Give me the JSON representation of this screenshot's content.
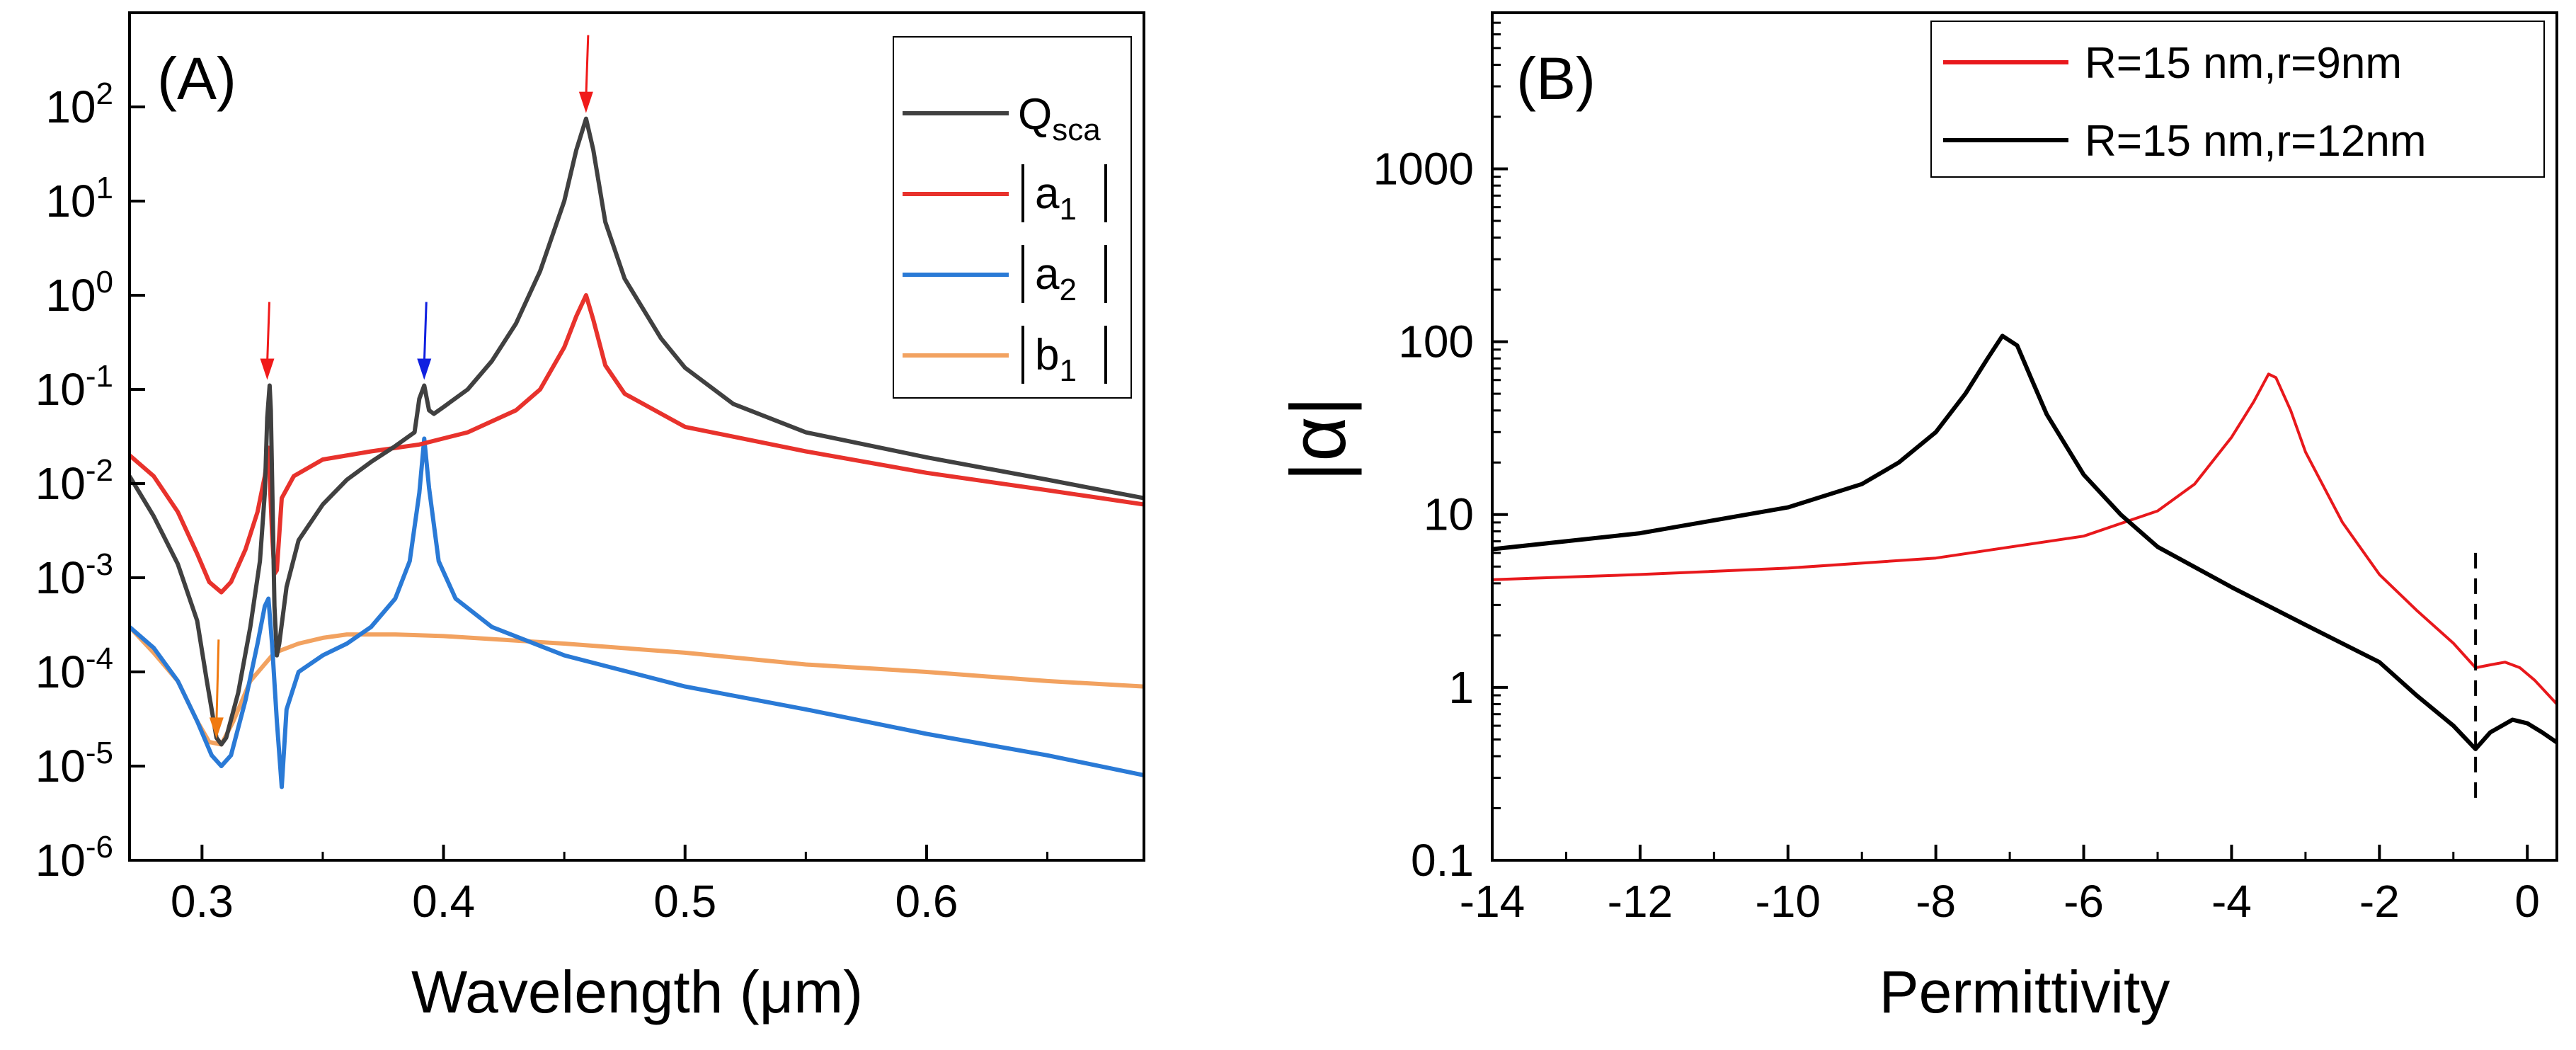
{
  "colors": {
    "qsca": "#404040",
    "a1": "#e8322c",
    "a2": "#2a7ad6",
    "b1": "#f2a260",
    "red": "#e8181c",
    "black": "#000000",
    "arrow_red": "#f01a1a",
    "arrow_blue": "#1020e0",
    "arrow_orange": "#f07a10"
  },
  "chart_data": [
    {
      "id": "A",
      "type": "line",
      "panel_label": "(A)",
      "xlabel": "Wavelength (μm)",
      "ylabel": "",
      "xlim": [
        0.27,
        0.69
      ],
      "ylim": [
        1e-06,
        1000
      ],
      "yscale": "log",
      "x_ticks": [
        0.3,
        0.4,
        0.5,
        0.6
      ],
      "x_tick_labels": [
        "0.3",
        "0.4",
        "0.5",
        "0.6"
      ],
      "y_ticks": [
        1e-06,
        1e-05,
        0.0001,
        0.001,
        0.01,
        0.1,
        1,
        10,
        100
      ],
      "y_tick_labels": [
        {
          "base": "10",
          "exp": "-6"
        },
        {
          "base": "10",
          "exp": "-5"
        },
        {
          "base": "10",
          "exp": "-4"
        },
        {
          "base": "10",
          "exp": "-3"
        },
        {
          "base": "10",
          "exp": "-2"
        },
        {
          "base": "10",
          "exp": "-1"
        },
        {
          "base": "10",
          "exp": "0"
        },
        {
          "base": "10",
          "exp": "1"
        },
        {
          "base": "10",
          "exp": "2"
        }
      ],
      "legend_position": "top-right",
      "series": [
        {
          "name": "Q_sca",
          "label_main": "Q",
          "label_sub": "sca",
          "color_key": "qsca",
          "points": [
            [
              0.27,
              0.012
            ],
            [
              0.28,
              0.0045
            ],
            [
              0.29,
              0.0014
            ],
            [
              0.298,
              0.00035
            ],
            [
              0.302,
              8e-05
            ],
            [
              0.306,
              2e-05
            ],
            [
              0.308,
              1.7e-05
            ],
            [
              0.31,
              2e-05
            ],
            [
              0.315,
              6e-05
            ],
            [
              0.32,
              0.0003
            ],
            [
              0.324,
              0.0015
            ],
            [
              0.326,
              0.008
            ],
            [
              0.327,
              0.05
            ],
            [
              0.328,
              0.11
            ],
            [
              0.3285,
              0.06
            ],
            [
              0.33,
              0.0005
            ],
            [
              0.331,
              0.00015
            ],
            [
              0.332,
              0.0002
            ],
            [
              0.335,
              0.0008
            ],
            [
              0.34,
              0.0025
            ],
            [
              0.35,
              0.006
            ],
            [
              0.36,
              0.011
            ],
            [
              0.37,
              0.017
            ],
            [
              0.38,
              0.025
            ],
            [
              0.388,
              0.035
            ],
            [
              0.39,
              0.08
            ],
            [
              0.392,
              0.11
            ],
            [
              0.394,
              0.06
            ],
            [
              0.396,
              0.055
            ],
            [
              0.4,
              0.065
            ],
            [
              0.41,
              0.1
            ],
            [
              0.42,
              0.2
            ],
            [
              0.43,
              0.5
            ],
            [
              0.44,
              1.8
            ],
            [
              0.45,
              10
            ],
            [
              0.455,
              35
            ],
            [
              0.459,
              75
            ],
            [
              0.462,
              35
            ],
            [
              0.467,
              6
            ],
            [
              0.475,
              1.5
            ],
            [
              0.49,
              0.35
            ],
            [
              0.5,
              0.17
            ],
            [
              0.52,
              0.07
            ],
            [
              0.55,
              0.035
            ],
            [
              0.6,
              0.019
            ],
            [
              0.65,
              0.011
            ],
            [
              0.69,
              0.007
            ]
          ]
        },
        {
          "name": "|a1|",
          "label_main": "a",
          "label_sub": "1",
          "color_key": "a1",
          "points": [
            [
              0.27,
              0.02
            ],
            [
              0.28,
              0.012
            ],
            [
              0.29,
              0.005
            ],
            [
              0.298,
              0.0018
            ],
            [
              0.303,
              0.0009
            ],
            [
              0.308,
              0.0007
            ],
            [
              0.312,
              0.0009
            ],
            [
              0.318,
              0.002
            ],
            [
              0.323,
              0.005
            ],
            [
              0.326,
              0.012
            ],
            [
              0.3275,
              0.024
            ],
            [
              0.329,
              0.003
            ],
            [
              0.33,
              0.0011
            ],
            [
              0.331,
              0.0012
            ],
            [
              0.333,
              0.007
            ],
            [
              0.338,
              0.012
            ],
            [
              0.35,
              0.018
            ],
            [
              0.37,
              0.022
            ],
            [
              0.39,
              0.026
            ],
            [
              0.41,
              0.035
            ],
            [
              0.43,
              0.06
            ],
            [
              0.44,
              0.1
            ],
            [
              0.45,
              0.28
            ],
            [
              0.455,
              0.6
            ],
            [
              0.459,
              1
            ],
            [
              0.462,
              0.55
            ],
            [
              0.467,
              0.18
            ],
            [
              0.475,
              0.09
            ],
            [
              0.5,
              0.04
            ],
            [
              0.55,
              0.022
            ],
            [
              0.6,
              0.013
            ],
            [
              0.65,
              0.0085
            ],
            [
              0.69,
              0.006
            ]
          ]
        },
        {
          "name": "|a2|",
          "label_main": "a",
          "label_sub": "2",
          "color_key": "a2",
          "points": [
            [
              0.27,
              0.0003
            ],
            [
              0.28,
              0.00018
            ],
            [
              0.29,
              8e-05
            ],
            [
              0.298,
              3e-05
            ],
            [
              0.304,
              1.3e-05
            ],
            [
              0.308,
              1e-05
            ],
            [
              0.312,
              1.3e-05
            ],
            [
              0.318,
              5e-05
            ],
            [
              0.323,
              0.0002
            ],
            [
              0.326,
              0.0005
            ],
            [
              0.3275,
              0.0006
            ],
            [
              0.329,
              0.0002
            ],
            [
              0.331,
              3e-05
            ],
            [
              0.333,
              6e-06
            ],
            [
              0.335,
              4e-05
            ],
            [
              0.34,
              0.0001
            ],
            [
              0.35,
              0.00015
            ],
            [
              0.36,
              0.0002
            ],
            [
              0.37,
              0.0003
            ],
            [
              0.38,
              0.0006
            ],
            [
              0.386,
              0.0015
            ],
            [
              0.39,
              0.008
            ],
            [
              0.392,
              0.03
            ],
            [
              0.394,
              0.009
            ],
            [
              0.398,
              0.0015
            ],
            [
              0.405,
              0.0006
            ],
            [
              0.42,
              0.0003
            ],
            [
              0.45,
              0.00015
            ],
            [
              0.5,
              7e-05
            ],
            [
              0.55,
              4e-05
            ],
            [
              0.6,
              2.2e-05
            ],
            [
              0.65,
              1.3e-05
            ],
            [
              0.69,
              8e-06
            ]
          ]
        },
        {
          "name": "|b1|",
          "label_main": "b",
          "label_sub": "1",
          "color_key": "b1",
          "points": [
            [
              0.27,
              0.0003
            ],
            [
              0.28,
              0.00016
            ],
            [
              0.29,
              8e-05
            ],
            [
              0.298,
              3e-05
            ],
            [
              0.303,
              1.8e-05
            ],
            [
              0.308,
              1.7e-05
            ],
            [
              0.313,
              3e-05
            ],
            [
              0.32,
              8e-05
            ],
            [
              0.33,
              0.00016
            ],
            [
              0.34,
              0.0002
            ],
            [
              0.35,
              0.00023
            ],
            [
              0.36,
              0.00025
            ],
            [
              0.38,
              0.00025
            ],
            [
              0.4,
              0.00024
            ],
            [
              0.45,
              0.0002
            ],
            [
              0.5,
              0.00016
            ],
            [
              0.55,
              0.00012
            ],
            [
              0.6,
              0.0001
            ],
            [
              0.65,
              8e-05
            ],
            [
              0.69,
              7e-05
            ]
          ]
        }
      ],
      "annotations": [
        {
          "type": "arrow",
          "x": 0.327,
          "y": 0.11,
          "color_key": "arrow_red"
        },
        {
          "type": "arrow",
          "x": 0.392,
          "y": 0.11,
          "color_key": "arrow_blue"
        },
        {
          "type": "arrow",
          "x": 0.459,
          "y": 75,
          "color_key": "arrow_red"
        },
        {
          "type": "arrow",
          "x": 0.306,
          "y": 1.7e-05,
          "color_key": "arrow_orange"
        }
      ]
    },
    {
      "id": "B",
      "type": "line",
      "panel_label": "(B)",
      "xlabel": "Permittivity",
      "ylabel": "|α|",
      "xlim": [
        -14,
        0.4
      ],
      "ylim": [
        0.1,
        8000
      ],
      "yscale": "log",
      "x_ticks": [
        -14,
        -12,
        -10,
        -8,
        -6,
        -4,
        -2,
        0
      ],
      "x_tick_labels": [
        "-14",
        "-12",
        "-10",
        "-8",
        "-6",
        "-4",
        "-2",
        "0"
      ],
      "y_ticks": [
        0.1,
        1,
        10,
        100,
        1000
      ],
      "y_tick_labels": [
        "0.1",
        "1",
        "10",
        "100",
        "1000"
      ],
      "legend_position": "top-right",
      "series": [
        {
          "name": "R=15 nm,r=9nm",
          "color_key": "red",
          "points": [
            [
              -14,
              4.2
            ],
            [
              -12,
              4.5
            ],
            [
              -10,
              4.9
            ],
            [
              -8,
              5.6
            ],
            [
              -6,
              7.5
            ],
            [
              -5,
              10.5
            ],
            [
              -4.5,
              15
            ],
            [
              -4,
              28
            ],
            [
              -3.7,
              45
            ],
            [
              -3.5,
              65
            ],
            [
              -3.4,
              62
            ],
            [
              -3.2,
              40
            ],
            [
              -3,
              23
            ],
            [
              -2.5,
              9
            ],
            [
              -2,
              4.5
            ],
            [
              -1.5,
              2.8
            ],
            [
              -1,
              1.8
            ],
            [
              -0.7,
              1.3
            ],
            [
              -0.5,
              1.35
            ],
            [
              -0.3,
              1.4
            ],
            [
              -0.1,
              1.3
            ],
            [
              0.1,
              1.1
            ],
            [
              0.4,
              0.8
            ]
          ]
        },
        {
          "name": "R=15 nm,r=12nm",
          "color_key": "black",
          "points": [
            [
              -14,
              6.3
            ],
            [
              -12,
              7.8
            ],
            [
              -10,
              11
            ],
            [
              -9,
              15
            ],
            [
              -8.5,
              20
            ],
            [
              -8,
              30
            ],
            [
              -7.6,
              50
            ],
            [
              -7.3,
              80
            ],
            [
              -7.1,
              108
            ],
            [
              -6.9,
              95
            ],
            [
              -6.7,
              60
            ],
            [
              -6.5,
              38
            ],
            [
              -6,
              17
            ],
            [
              -5.5,
              10
            ],
            [
              -5,
              6.5
            ],
            [
              -4,
              3.8
            ],
            [
              -3,
              2.3
            ],
            [
              -2,
              1.4
            ],
            [
              -1.5,
              0.9
            ],
            [
              -1,
              0.6
            ],
            [
              -0.7,
              0.44
            ],
            [
              -0.5,
              0.55
            ],
            [
              -0.2,
              0.65
            ],
            [
              0,
              0.62
            ],
            [
              0.2,
              0.55
            ],
            [
              0.4,
              0.48
            ]
          ]
        }
      ],
      "annotations": [
        {
          "type": "vline",
          "x": -0.7,
          "y_range": [
            0.22,
            6
          ],
          "style": "dashed",
          "color_key": "black"
        }
      ]
    }
  ]
}
